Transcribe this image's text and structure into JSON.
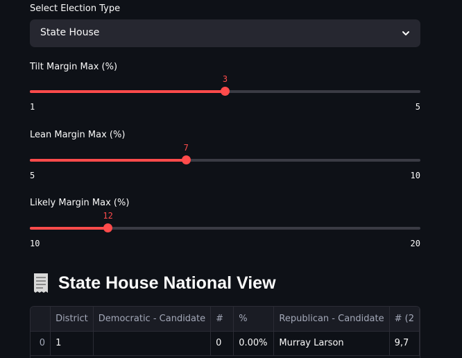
{
  "election_select": {
    "label": "Select Election Type",
    "value": "State House"
  },
  "sliders": [
    {
      "label": "Tilt Margin Max (%)",
      "min": "1",
      "max": "5",
      "value": "3",
      "min_n": 1,
      "max_n": 5,
      "value_n": 3
    },
    {
      "label": "Lean Margin Max (%)",
      "min": "5",
      "max": "10",
      "value": "7",
      "min_n": 5,
      "max_n": 10,
      "value_n": 7
    },
    {
      "label": "Likely Margin Max (%)",
      "min": "10",
      "max": "20",
      "value": "12",
      "min_n": 10,
      "max_n": 20,
      "value_n": 12
    }
  ],
  "section": {
    "icon": "receipt-icon",
    "title": "State House National View"
  },
  "table": {
    "columns": [
      "",
      "District",
      "Democratic - Candidate",
      "#",
      "%",
      "Republican - Candidate",
      "# (2"
    ],
    "rows": [
      {
        "index": "0",
        "district": "1",
        "dem_candidate": "",
        "dem_votes": "0",
        "dem_pct": "0.00%",
        "rep_candidate": "Murray Larson",
        "rep_votes": "9,7"
      }
    ]
  },
  "colors": {
    "accent": "#ff4b4b",
    "background": "#0e1117",
    "widget": "#262730"
  }
}
